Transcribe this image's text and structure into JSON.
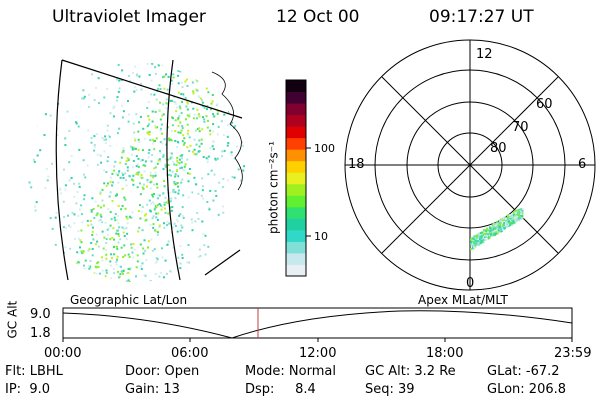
{
  "header": {
    "instrument": "Ultraviolet Imager",
    "date": "12 Oct 00",
    "time": "09:17:27 UT"
  },
  "colorbar": {
    "label": "photon cm⁻²s⁻¹",
    "ticks": [
      "100",
      "10"
    ],
    "colors": [
      "#e8f0f4",
      "#c8e8f0",
      "#80e0d8",
      "#30d8c8",
      "#20d0a0",
      "#30e070",
      "#60f030",
      "#a0f020",
      "#e8f020",
      "#ffd000",
      "#ff9000",
      "#ff4000",
      "#e00000",
      "#b00020",
      "#800030",
      "#400030",
      "#100010"
    ]
  },
  "polar_plot": {
    "mlt_labels": [
      "12",
      "18",
      "6",
      "0"
    ],
    "mlat_labels": [
      "60",
      "70",
      "80"
    ]
  },
  "panel_labels": {
    "left": "Geographic Lat/Lon",
    "right": "Apex MLat/MLT"
  },
  "altitude_plot": {
    "ylabel": "GC Alt",
    "yticks": [
      "9.0",
      "1.8"
    ],
    "xticks": [
      "00:00",
      "06:00",
      "12:00",
      "18:00",
      "23:59"
    ]
  },
  "footer": {
    "filter": "Flt: LBHL",
    "ip": "IP:  9.0",
    "door": "Door: Open",
    "gain": "Gain: 13",
    "mode": "Mode: Normal",
    "dsp": "Dsp:     8.4",
    "gc_alt": "GC Alt: 3.2 Re",
    "seq": "Seq: 39",
    "glat": "GLat: -67.2",
    "glon": "GLon: 206.8"
  }
}
